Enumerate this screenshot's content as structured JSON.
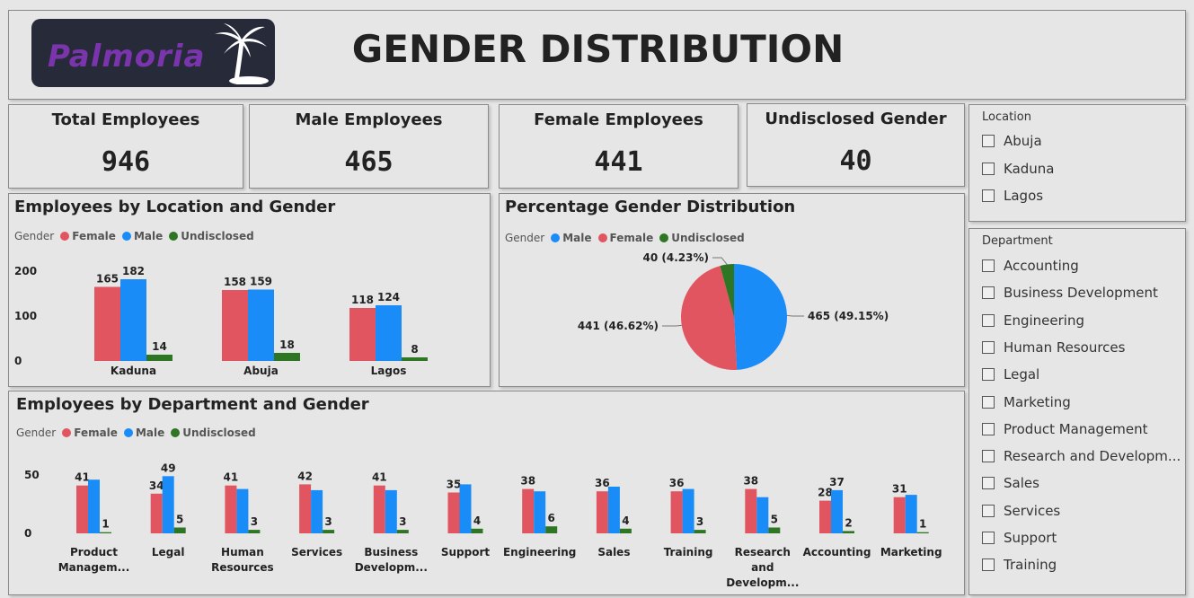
{
  "header": {
    "logo_text": "Palmoria",
    "title": "GENDER DISTRIBUTION"
  },
  "kpis": [
    {
      "label": "Total Employees",
      "value": "946"
    },
    {
      "label": "Male Employees",
      "value": "465"
    },
    {
      "label": "Female Employees",
      "value": "441"
    },
    {
      "label": "Undisclosed Gender",
      "value": "40"
    }
  ],
  "colors": {
    "female": "#e15560",
    "male": "#1a8cf7",
    "undisclosed": "#2e7524"
  },
  "legend": {
    "title": "Gender",
    "female": "Female",
    "male": "Male",
    "undisclosed": "Undisclosed"
  },
  "filters": {
    "location": {
      "title": "Location",
      "options": [
        "Abuja",
        "Kaduna",
        "Lagos"
      ]
    },
    "department": {
      "title": "Department",
      "options": [
        "Accounting",
        "Business Development",
        "Engineering",
        "Human Resources",
        "Legal",
        "Marketing",
        "Product Management",
        "Research and Developm...",
        "Sales",
        "Services",
        "Support",
        "Training"
      ]
    }
  },
  "chart_data": [
    {
      "type": "bar",
      "title": "Employees by Location and Gender",
      "legend_title": "Gender",
      "categories": [
        "Kaduna",
        "Abuja",
        "Lagos"
      ],
      "series": [
        {
          "name": "Female",
          "values": [
            165,
            158,
            118
          ]
        },
        {
          "name": "Male",
          "values": [
            182,
            159,
            124
          ]
        },
        {
          "name": "Undisclosed",
          "values": [
            14,
            18,
            8
          ]
        }
      ],
      "yticks": [
        "200",
        "100",
        "0"
      ],
      "ylim": [
        0,
        200
      ]
    },
    {
      "type": "pie",
      "title": "Percentage Gender Distribution",
      "legend_title": "Gender",
      "labels": [
        "Male",
        "Female",
        "Undisclosed"
      ],
      "values": [
        465,
        441,
        40
      ],
      "slice_labels": [
        "465 (49.15%)",
        "441 (46.62%)",
        "40 (4.23%)"
      ]
    },
    {
      "type": "bar",
      "title": "Employees by Department and Gender",
      "legend_title": "Gender",
      "categories": [
        [
          "Product",
          "Managem..."
        ],
        [
          "Legal"
        ],
        [
          "Human",
          "Resources"
        ],
        [
          "Services"
        ],
        [
          "Business",
          "Developm..."
        ],
        [
          "Support"
        ],
        [
          "Engineering"
        ],
        [
          "Sales"
        ],
        [
          "Training"
        ],
        [
          "Research",
          "and",
          "Developm..."
        ],
        [
          "Accounting"
        ],
        [
          "Marketing"
        ]
      ],
      "series": [
        {
          "name": "Female",
          "values": [
            41,
            34,
            41,
            42,
            41,
            35,
            38,
            36,
            36,
            38,
            28,
            31
          ]
        },
        {
          "name": "Male",
          "values": [
            46,
            49,
            38,
            37,
            37,
            42,
            36,
            40,
            38,
            31,
            37,
            33
          ]
        },
        {
          "name": "Undisclosed",
          "values": [
            1,
            5,
            3,
            3,
            3,
            4,
            6,
            4,
            3,
            5,
            2,
            1
          ]
        }
      ],
      "value_labels": [
        {
          "female": "41",
          "undisclosed": "1"
        },
        {
          "female": "34",
          "male": "49",
          "undisclosed": "5"
        },
        {
          "female": "41",
          "undisclosed": "3"
        },
        {
          "female": "42",
          "undisclosed": "3"
        },
        {
          "female": "41",
          "undisclosed": "3"
        },
        {
          "female": "35",
          "undisclosed": "4"
        },
        {
          "female": "38",
          "undisclosed": "6"
        },
        {
          "female": "36",
          "undisclosed": "4"
        },
        {
          "female": "36",
          "undisclosed": "3"
        },
        {
          "female": "38",
          "undisclosed": "5"
        },
        {
          "female": "28",
          "male": "37",
          "undisclosed": "2"
        },
        {
          "female": "31",
          "undisclosed": "1"
        }
      ],
      "yticks": [
        "50",
        "0"
      ],
      "ylim": [
        0,
        50
      ]
    }
  ]
}
